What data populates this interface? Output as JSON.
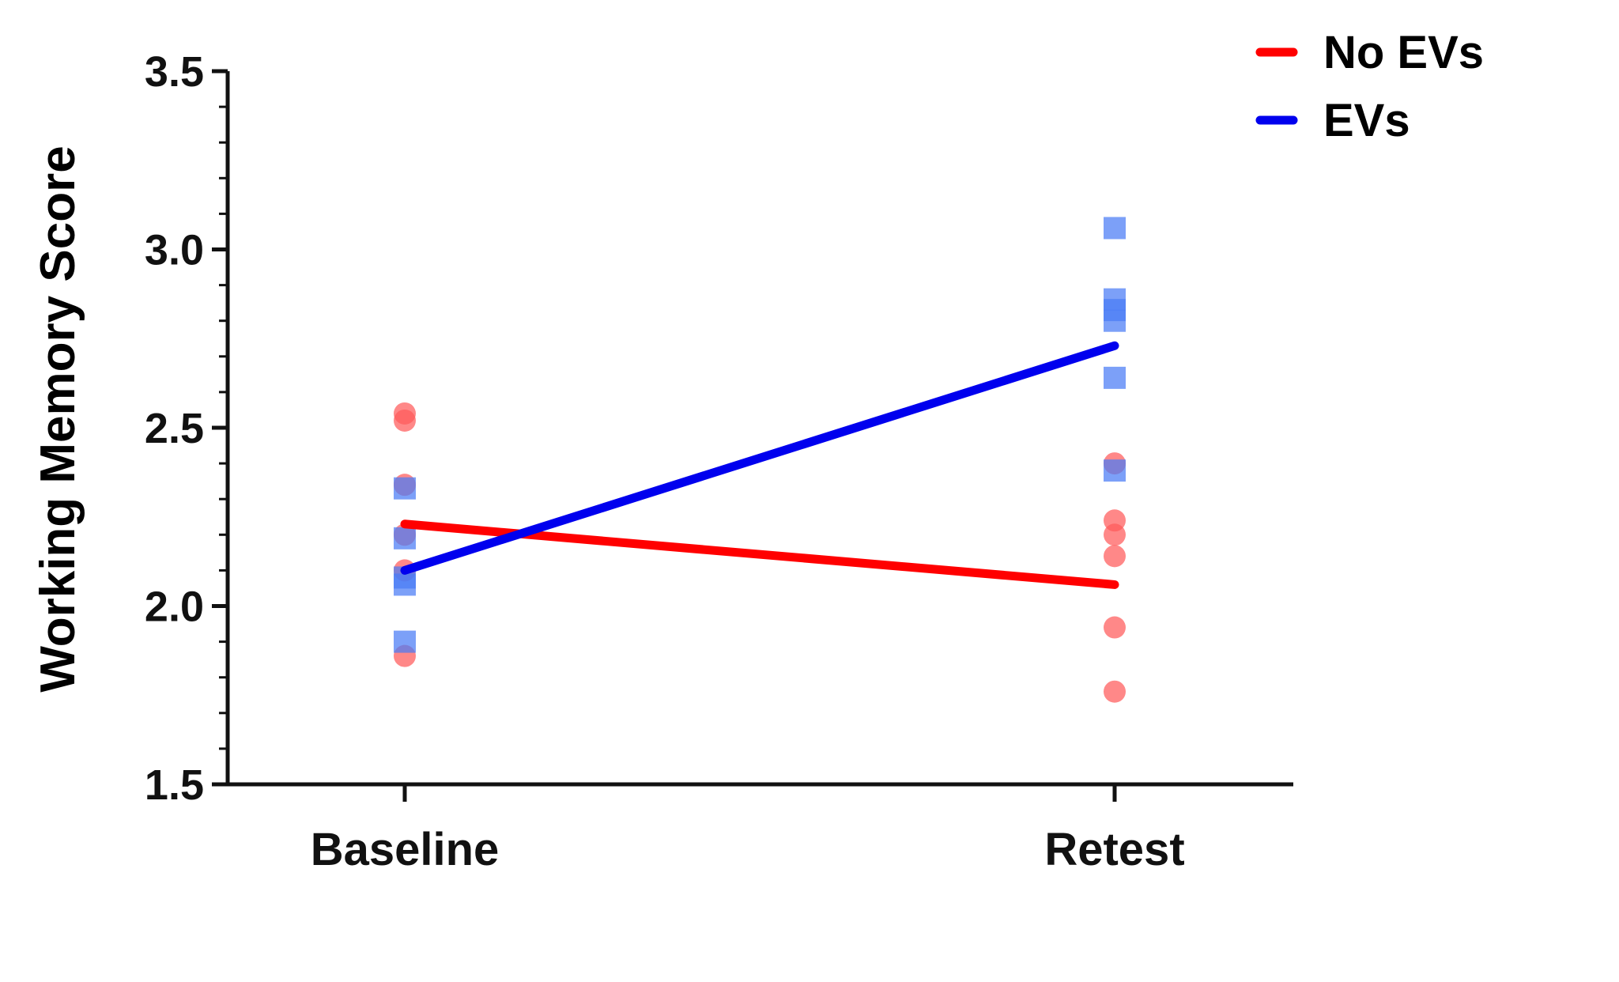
{
  "chart_data": {
    "type": "line",
    "title": "",
    "xlabel": "",
    "ylabel": "Working Memory Score",
    "categories": [
      "Baseline",
      "Retest"
    ],
    "ylim": [
      1.5,
      3.5
    ],
    "yticks": [
      "1.5",
      "2.0",
      "2.5",
      "3.0",
      "3.5"
    ],
    "grid": false,
    "legend_position": "top-right",
    "series": [
      {
        "name": "No EVs",
        "color": "#ff0000",
        "point_color": "#ff5a5a",
        "marker": "circle",
        "mean": [
          2.23,
          2.06
        ],
        "points": [
          [
            2.54,
            2.52,
            2.34,
            2.2,
            2.1,
            1.86
          ],
          [
            2.4,
            2.24,
            2.2,
            2.14,
            1.94,
            1.76
          ]
        ]
      },
      {
        "name": "EVs",
        "color": "#0000ee",
        "point_color": "#4a7cf5",
        "marker": "square",
        "mean": [
          2.1,
          2.73
        ],
        "points": [
          [
            2.33,
            2.19,
            2.08,
            2.06,
            1.9
          ],
          [
            3.06,
            2.86,
            2.83,
            2.8,
            2.64,
            2.38
          ]
        ]
      }
    ]
  }
}
